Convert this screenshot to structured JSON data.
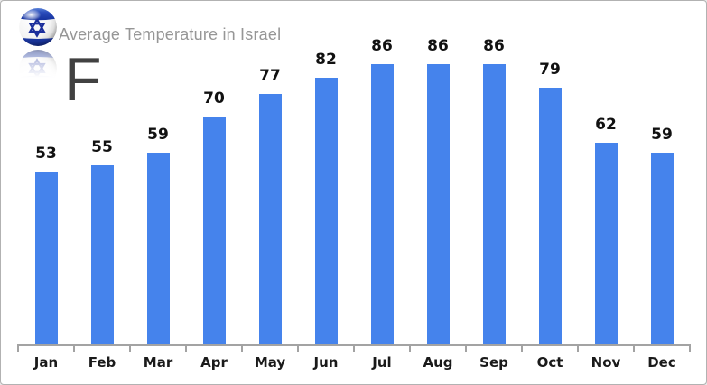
{
  "window": {
    "background": "#ffffff",
    "border_color": "#b2b2b2"
  },
  "header": {
    "title": "Average Temperature in Israel",
    "title_color": "#969696",
    "unit_label": "F",
    "unit_color": "#414141",
    "flag_icon": "israel-flag-sphere-icon"
  },
  "chart_data": {
    "type": "bar",
    "title": "Average Temperature in Israel",
    "unit": "F",
    "categories": [
      "Jan",
      "Feb",
      "Mar",
      "Apr",
      "May",
      "Jun",
      "Jul",
      "Aug",
      "Sep",
      "Oct",
      "Nov",
      "Dec"
    ],
    "values": [
      53,
      55,
      59,
      70,
      77,
      82,
      86,
      86,
      86,
      79,
      62,
      59
    ],
    "series_name": "Average Temperature (F)",
    "xlabel": "",
    "ylabel": "",
    "ylim": [
      0,
      90
    ],
    "grid": false,
    "legend": false,
    "data_labels": true,
    "bar_color": "#4583ec",
    "axis_color": "#a3a3a3",
    "value_label_color": "#111111",
    "category_label_color": "#1a1a1a"
  }
}
